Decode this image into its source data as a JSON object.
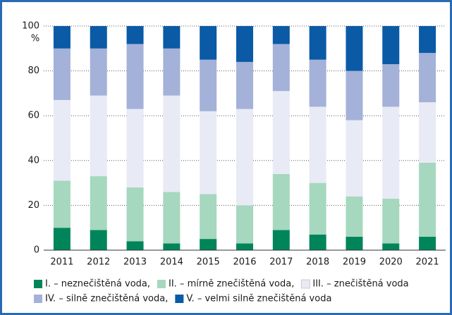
{
  "chart_data": {
    "type": "stacked_bar",
    "y_label": "%",
    "categories": [
      "2011",
      "2012",
      "2013",
      "2014",
      "2015",
      "2016",
      "2017",
      "2018",
      "2019",
      "2020",
      "2021"
    ],
    "series": [
      {
        "name": "I. – neznečištěná voda,",
        "color": "#00855a",
        "values": [
          10,
          9,
          4,
          3,
          5,
          3,
          9,
          7,
          6,
          3,
          6
        ]
      },
      {
        "name": "II. – mírně znečištěná voda,",
        "color": "#a6d7bf",
        "values": [
          21,
          24,
          24,
          23,
          20,
          17,
          25,
          23,
          18,
          20,
          33
        ]
      },
      {
        "name": "III. – znečištěná voda",
        "color": "#e8eaf5",
        "values": [
          36,
          36,
          35,
          43,
          37,
          43,
          37,
          34,
          34,
          41,
          27
        ]
      },
      {
        "name": "IV. – silně znečištěná voda,",
        "color": "#a4b1d8",
        "values": [
          23,
          21,
          29,
          21,
          23,
          21,
          21,
          21,
          22,
          19,
          22
        ]
      },
      {
        "name": "V. – velmi silně znečištěná voda",
        "color": "#0a5aa6",
        "values": [
          10,
          10,
          8,
          10,
          15,
          16,
          8,
          15,
          20,
          17,
          12
        ]
      }
    ],
    "ylim": [
      0,
      100
    ],
    "yticks": [
      0,
      20,
      40,
      60,
      80,
      100
    ],
    "grid": true
  }
}
